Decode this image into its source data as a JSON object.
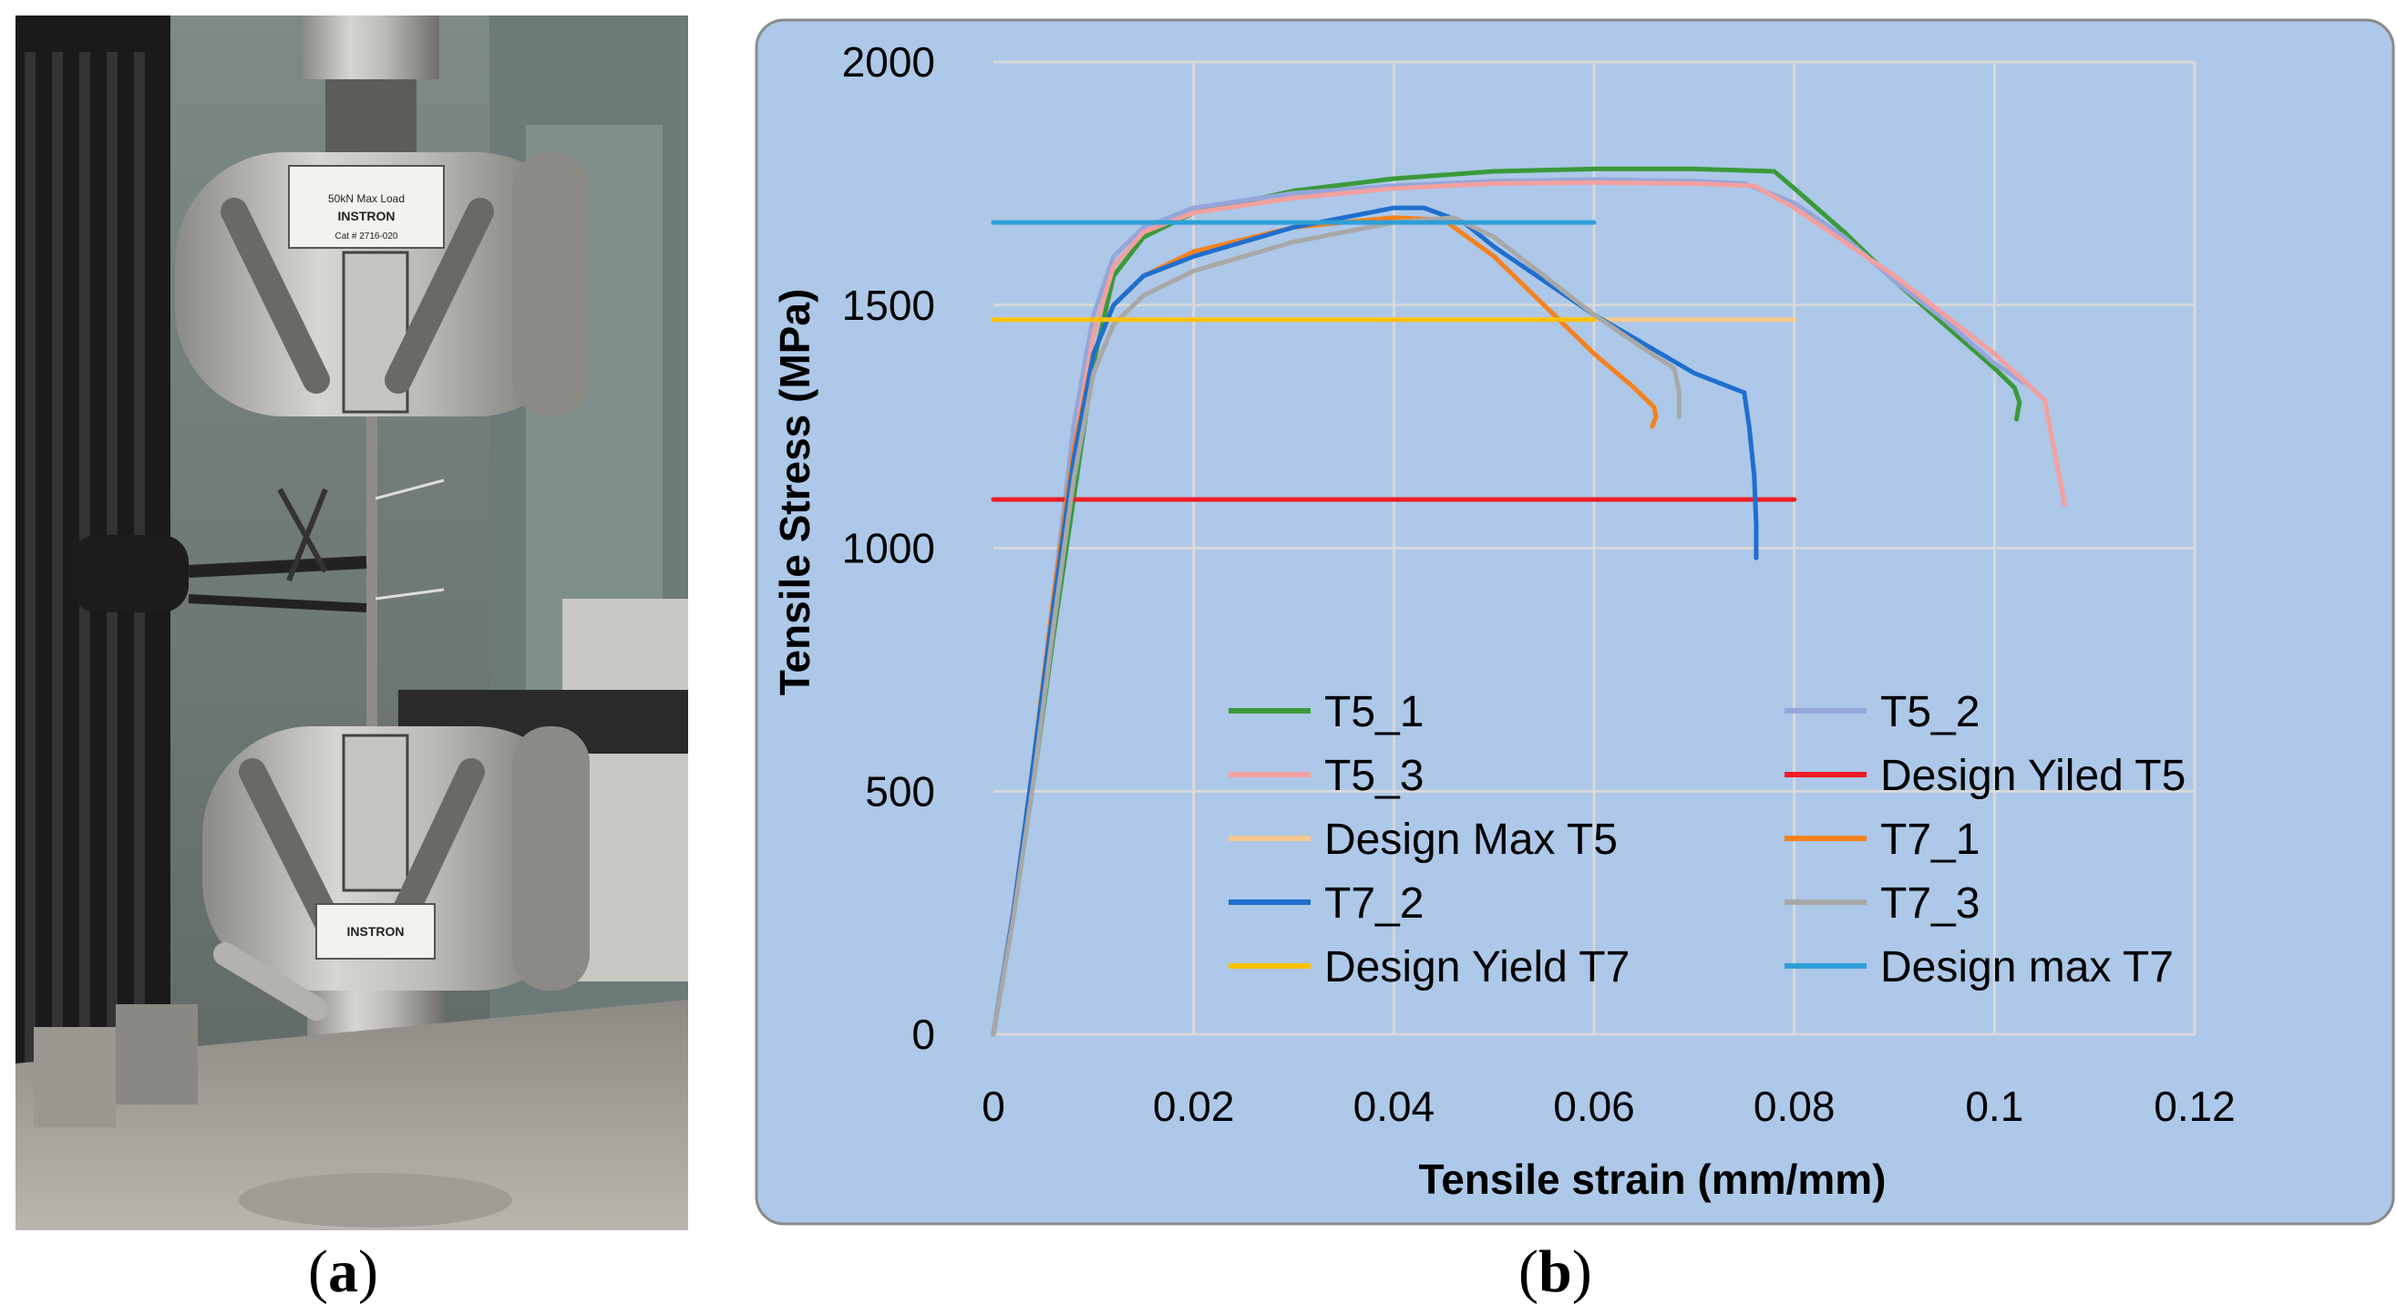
{
  "panels": {
    "a": {
      "caption_open": "(",
      "caption_letter": "a",
      "caption_close": ")"
    },
    "b": {
      "caption_open": "(",
      "caption_letter": "b",
      "caption_close": ")"
    }
  },
  "photo": {
    "subject": "tensile-testing-machine",
    "grip_top_label": "INSTRON",
    "grip_top_text": "50kN Max Load",
    "grip_top_cat": "Cat # 2716-020",
    "grip_bottom_label": "INSTRON"
  },
  "chart_data": {
    "type": "line",
    "xlabel": "Tensile strain (mm/mm)",
    "ylabel": "Tensile Stress (MPa)",
    "xlim": [
      0,
      0.12
    ],
    "ylim": [
      0,
      2000
    ],
    "xticks": [
      0,
      0.02,
      0.04,
      0.06,
      0.08,
      0.1,
      0.12
    ],
    "xtick_labels": [
      "0",
      "0.02",
      "0.04",
      "0.06",
      "0.08",
      "0.1",
      "0.12"
    ],
    "yticks": [
      0,
      500,
      1000,
      1500,
      2000
    ],
    "ytick_labels": [
      "0",
      "500",
      "1000",
      "1500",
      "2000"
    ],
    "grid": true,
    "legend_position": "lower-center-inside",
    "background": "#adc8e8",
    "series": [
      {
        "name": "T5_1",
        "color": "#3a9a3a",
        "points": [
          [
            0,
            0
          ],
          [
            0.002,
            250
          ],
          [
            0.004,
            520
          ],
          [
            0.006,
            820
          ],
          [
            0.008,
            1100
          ],
          [
            0.01,
            1380
          ],
          [
            0.012,
            1560
          ],
          [
            0.015,
            1640
          ],
          [
            0.02,
            1690
          ],
          [
            0.03,
            1735
          ],
          [
            0.04,
            1760
          ],
          [
            0.05,
            1775
          ],
          [
            0.06,
            1780
          ],
          [
            0.07,
            1780
          ],
          [
            0.078,
            1775
          ],
          [
            0.08,
            1740
          ],
          [
            0.085,
            1650
          ],
          [
            0.09,
            1550
          ],
          [
            0.095,
            1460
          ],
          [
            0.1,
            1370
          ],
          [
            0.102,
            1330
          ],
          [
            0.1025,
            1300
          ],
          [
            0.1022,
            1265
          ]
        ]
      },
      {
        "name": "T5_2",
        "color": "#95a6da",
        "points": [
          [
            0,
            0
          ],
          [
            0.002,
            260
          ],
          [
            0.004,
            560
          ],
          [
            0.006,
            900
          ],
          [
            0.008,
            1250
          ],
          [
            0.01,
            1480
          ],
          [
            0.012,
            1600
          ],
          [
            0.015,
            1660
          ],
          [
            0.02,
            1700
          ],
          [
            0.03,
            1730
          ],
          [
            0.04,
            1745
          ],
          [
            0.05,
            1755
          ],
          [
            0.06,
            1758
          ],
          [
            0.07,
            1755
          ],
          [
            0.075,
            1750
          ],
          [
            0.08,
            1710
          ],
          [
            0.085,
            1640
          ],
          [
            0.09,
            1550
          ],
          [
            0.095,
            1470
          ],
          [
            0.1,
            1380
          ],
          [
            0.103,
            1340
          ]
        ]
      },
      {
        "name": "T5_3",
        "color": "#f4a0a0",
        "points": [
          [
            0,
            0
          ],
          [
            0.002,
            250
          ],
          [
            0.004,
            540
          ],
          [
            0.006,
            860
          ],
          [
            0.008,
            1200
          ],
          [
            0.01,
            1440
          ],
          [
            0.012,
            1580
          ],
          [
            0.015,
            1650
          ],
          [
            0.02,
            1690
          ],
          [
            0.03,
            1720
          ],
          [
            0.04,
            1740
          ],
          [
            0.05,
            1750
          ],
          [
            0.06,
            1752
          ],
          [
            0.07,
            1750
          ],
          [
            0.076,
            1745
          ],
          [
            0.08,
            1700
          ],
          [
            0.085,
            1630
          ],
          [
            0.09,
            1560
          ],
          [
            0.095,
            1480
          ],
          [
            0.1,
            1400
          ],
          [
            0.105,
            1305
          ],
          [
            0.106,
            1200
          ],
          [
            0.107,
            1090
          ]
        ]
      },
      {
        "name": "Design Yiled T5",
        "color": "#ee1c25",
        "points": [
          [
            0,
            1100
          ],
          [
            0.08,
            1100
          ]
        ]
      },
      {
        "name": "Design Max T5",
        "color": "#f7c98e",
        "points": [
          [
            0,
            1470
          ],
          [
            0.08,
            1470
          ]
        ]
      },
      {
        "name": "T7_1",
        "color": "#f5821f",
        "points": [
          [
            0,
            0
          ],
          [
            0.002,
            250
          ],
          [
            0.004,
            560
          ],
          [
            0.006,
            900
          ],
          [
            0.008,
            1200
          ],
          [
            0.01,
            1400
          ],
          [
            0.012,
            1500
          ],
          [
            0.015,
            1560
          ],
          [
            0.02,
            1610
          ],
          [
            0.03,
            1660
          ],
          [
            0.04,
            1680
          ],
          [
            0.045,
            1675
          ],
          [
            0.05,
            1600
          ],
          [
            0.055,
            1500
          ],
          [
            0.06,
            1400
          ],
          [
            0.064,
            1330
          ],
          [
            0.066,
            1290
          ],
          [
            0.0662,
            1270
          ],
          [
            0.0658,
            1250
          ]
        ]
      },
      {
        "name": "T7_2",
        "color": "#1f6fce",
        "points": [
          [
            0,
            0
          ],
          [
            0.002,
            250
          ],
          [
            0.004,
            560
          ],
          [
            0.006,
            880
          ],
          [
            0.008,
            1180
          ],
          [
            0.01,
            1400
          ],
          [
            0.012,
            1500
          ],
          [
            0.015,
            1560
          ],
          [
            0.02,
            1600
          ],
          [
            0.03,
            1660
          ],
          [
            0.04,
            1700
          ],
          [
            0.043,
            1700
          ],
          [
            0.047,
            1670
          ],
          [
            0.05,
            1620
          ],
          [
            0.055,
            1550
          ],
          [
            0.06,
            1480
          ],
          [
            0.065,
            1420
          ],
          [
            0.07,
            1360
          ],
          [
            0.075,
            1320
          ],
          [
            0.0755,
            1250
          ],
          [
            0.076,
            1150
          ],
          [
            0.0762,
            1050
          ],
          [
            0.0762,
            980
          ]
        ]
      },
      {
        "name": "T7_3",
        "color": "#a8a8a8",
        "points": [
          [
            0,
            0
          ],
          [
            0.002,
            240
          ],
          [
            0.004,
            520
          ],
          [
            0.006,
            840
          ],
          [
            0.008,
            1140
          ],
          [
            0.01,
            1360
          ],
          [
            0.012,
            1460
          ],
          [
            0.015,
            1520
          ],
          [
            0.02,
            1570
          ],
          [
            0.03,
            1630
          ],
          [
            0.04,
            1670
          ],
          [
            0.046,
            1680
          ],
          [
            0.05,
            1640
          ],
          [
            0.055,
            1560
          ],
          [
            0.06,
            1480
          ],
          [
            0.065,
            1410
          ],
          [
            0.068,
            1370
          ],
          [
            0.0685,
            1320
          ],
          [
            0.0685,
            1270
          ]
        ]
      },
      {
        "name": "Design Yield T7",
        "color": "#ffc000",
        "points": [
          [
            0,
            1470
          ],
          [
            0.06,
            1470
          ]
        ]
      },
      {
        "name": "Design max T7",
        "color": "#2e9fd8",
        "points": [
          [
            0,
            1670
          ],
          [
            0.06,
            1670
          ]
        ]
      }
    ],
    "legend_order": [
      0,
      1,
      2,
      3,
      4,
      5,
      6,
      7,
      8,
      9
    ]
  }
}
